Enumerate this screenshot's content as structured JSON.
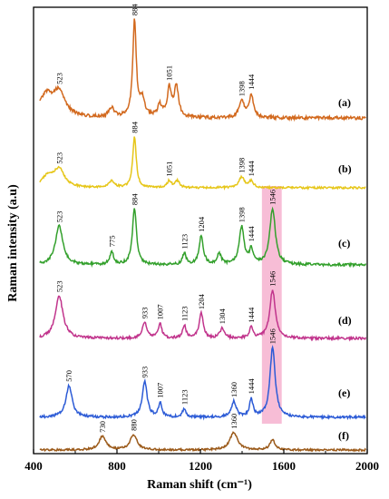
{
  "chart_data": {
    "type": "line",
    "xlabel": "Raman shift (cm⁻¹)",
    "ylabel": "Raman intensity (a.u)",
    "xlim": [
      400,
      2000
    ],
    "x_ticks": [
      "400",
      "800",
      "1200",
      "1600",
      "2000"
    ],
    "grid": false,
    "highlight_band": {
      "x_range": [
        1495,
        1590
      ],
      "color": "#f4a7c8"
    },
    "series": [
      {
        "name": "(a)",
        "color": "#d2691e",
        "peaks": [
          {
            "x": 460,
            "h": 0.22,
            "w": 40
          },
          {
            "x": 523,
            "h": 0.25,
            "w": 35
          },
          {
            "x": 775,
            "h": 0.1,
            "w": 15
          },
          {
            "x": 884,
            "h": 1.0,
            "w": 10
          },
          {
            "x": 920,
            "h": 0.18,
            "w": 15
          },
          {
            "x": 1005,
            "h": 0.12,
            "w": 12
          },
          {
            "x": 1051,
            "h": 0.3,
            "w": 12
          },
          {
            "x": 1085,
            "h": 0.32,
            "w": 12
          },
          {
            "x": 1398,
            "h": 0.17,
            "w": 15
          },
          {
            "x": 1444,
            "h": 0.24,
            "w": 12
          }
        ],
        "labels": [
          "523",
          "884",
          "1051",
          "1398",
          "1444"
        ]
      },
      {
        "name": "(b)",
        "color": "#e6c619",
        "peaks": [
          {
            "x": 470,
            "h": 0.2,
            "w": 35
          },
          {
            "x": 523,
            "h": 0.3,
            "w": 30
          },
          {
            "x": 775,
            "h": 0.12,
            "w": 15
          },
          {
            "x": 884,
            "h": 0.9,
            "w": 10
          },
          {
            "x": 1051,
            "h": 0.12,
            "w": 12
          },
          {
            "x": 1090,
            "h": 0.12,
            "w": 12
          },
          {
            "x": 1398,
            "h": 0.19,
            "w": 15
          },
          {
            "x": 1444,
            "h": 0.12,
            "w": 12
          }
        ],
        "labels": [
          "523",
          "884",
          "1051",
          "1398",
          "1444"
        ]
      },
      {
        "name": "(c)",
        "color": "#33a02c",
        "peaks": [
          {
            "x": 523,
            "h": 0.52,
            "w": 22
          },
          {
            "x": 775,
            "h": 0.18,
            "w": 10
          },
          {
            "x": 884,
            "h": 0.75,
            "w": 12
          },
          {
            "x": 1123,
            "h": 0.15,
            "w": 10
          },
          {
            "x": 1204,
            "h": 0.38,
            "w": 12
          },
          {
            "x": 1290,
            "h": 0.14,
            "w": 12
          },
          {
            "x": 1398,
            "h": 0.5,
            "w": 14
          },
          {
            "x": 1444,
            "h": 0.2,
            "w": 10
          },
          {
            "x": 1546,
            "h": 0.75,
            "w": 16
          }
        ],
        "labels": [
          "523",
          "775",
          "884",
          "1123",
          "1204",
          "1398",
          "1444",
          "1546"
        ]
      },
      {
        "name": "(d)",
        "color": "#c1348c",
        "peaks": [
          {
            "x": 523,
            "h": 0.6,
            "w": 22
          },
          {
            "x": 933,
            "h": 0.22,
            "w": 14
          },
          {
            "x": 1007,
            "h": 0.2,
            "w": 10
          },
          {
            "x": 1123,
            "h": 0.18,
            "w": 10
          },
          {
            "x": 1204,
            "h": 0.35,
            "w": 12
          },
          {
            "x": 1304,
            "h": 0.14,
            "w": 12
          },
          {
            "x": 1444,
            "h": 0.15,
            "w": 10
          },
          {
            "x": 1546,
            "h": 0.68,
            "w": 16
          }
        ],
        "labels": [
          "523",
          "933",
          "1007",
          "1123",
          "1204",
          "1304",
          "1444",
          "1546"
        ]
      },
      {
        "name": "(e)",
        "color": "#2c5bd6",
        "peaks": [
          {
            "x": 570,
            "h": 0.45,
            "w": 18
          },
          {
            "x": 933,
            "h": 0.5,
            "w": 14
          },
          {
            "x": 1007,
            "h": 0.2,
            "w": 10
          },
          {
            "x": 1123,
            "h": 0.12,
            "w": 10
          },
          {
            "x": 1360,
            "h": 0.22,
            "w": 14
          },
          {
            "x": 1444,
            "h": 0.25,
            "w": 10
          },
          {
            "x": 1546,
            "h": 0.98,
            "w": 15
          }
        ],
        "labels": [
          "570",
          "933",
          "1007",
          "1123",
          "1360",
          "1444",
          "1546"
        ]
      },
      {
        "name": "(f)",
        "color": "#9b5a1a",
        "peaks": [
          {
            "x": 730,
            "h": 0.25,
            "w": 20
          },
          {
            "x": 880,
            "h": 0.28,
            "w": 20
          },
          {
            "x": 1360,
            "h": 0.32,
            "w": 22
          },
          {
            "x": 1546,
            "h": 0.18,
            "w": 15
          }
        ],
        "labels": [
          "730",
          "880",
          "1360"
        ]
      }
    ]
  }
}
